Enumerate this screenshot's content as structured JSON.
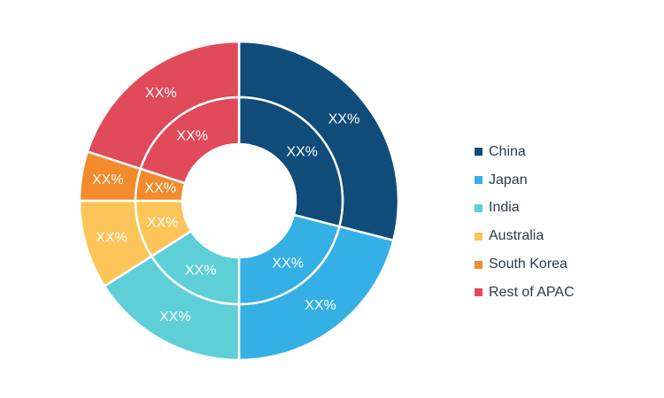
{
  "chart_data": {
    "type": "pie",
    "donut": true,
    "rings": [
      "outer",
      "inner"
    ],
    "categories": [
      "China",
      "Japan",
      "India",
      "Australia",
      "South Korea",
      "Rest of APAC"
    ],
    "colors": [
      "#0f4c7a",
      "#35b0e4",
      "#5ecfd6",
      "#fdc459",
      "#f28b2c",
      "#e04a5a"
    ],
    "series": [
      {
        "values": [
          29,
          21,
          16,
          9,
          5,
          20
        ],
        "labels": [
          "XX%",
          "XX%",
          "XX%",
          "XX%",
          "XX%",
          "XX%"
        ]
      },
      {
        "values": [
          29,
          21,
          16,
          9,
          5,
          20
        ],
        "labels": [
          "XX%",
          "XX%",
          "XX%",
          "XX%",
          "XX%",
          "XX%"
        ]
      }
    ],
    "legend": {
      "position": "right",
      "items": [
        "China",
        "Japan",
        "India",
        "Australia",
        "South Korea",
        "Rest of APAC"
      ]
    }
  }
}
